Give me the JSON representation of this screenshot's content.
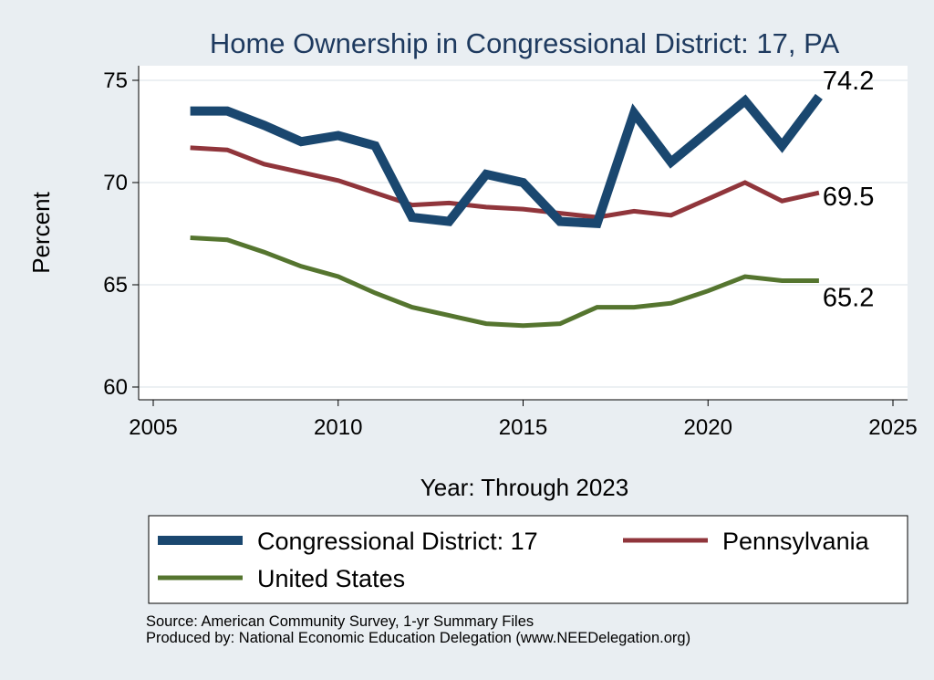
{
  "chart_data": {
    "type": "line",
    "title": "Home Ownership in Congressional District:  17, PA",
    "xlabel": "Year: Through 2023",
    "ylabel": "Percent",
    "xlim": [
      2005,
      2025
    ],
    "ylim": [
      60,
      75
    ],
    "x_ticks": [
      2005,
      2010,
      2015,
      2020,
      2025
    ],
    "y_ticks": [
      60,
      65,
      70,
      75
    ],
    "grid": true,
    "legend_position": "bottom",
    "x": [
      2006,
      2007,
      2008,
      2009,
      2010,
      2011,
      2012,
      2013,
      2014,
      2015,
      2016,
      2017,
      2018,
      2019,
      2020,
      2021,
      2022,
      2023
    ],
    "series": [
      {
        "name": "Congressional District:  17",
        "color": "#1a476f",
        "values": [
          73.5,
          73.5,
          72.8,
          72.0,
          72.3,
          71.8,
          68.3,
          68.1,
          70.4,
          70.0,
          68.1,
          68.0,
          73.4,
          71.0,
          72.5,
          74.0,
          71.8,
          74.2
        ],
        "end_label": "74.2"
      },
      {
        "name": "Pennsylvania",
        "color": "#90353b",
        "values": [
          71.7,
          71.6,
          70.9,
          70.5,
          70.1,
          69.5,
          68.9,
          69.0,
          68.8,
          68.7,
          68.5,
          68.3,
          68.6,
          68.4,
          69.2,
          70.0,
          69.1,
          69.5
        ],
        "end_label": "69.5"
      },
      {
        "name": "United States",
        "color": "#55752f",
        "values": [
          67.3,
          67.2,
          66.6,
          65.9,
          65.4,
          64.6,
          63.9,
          63.5,
          63.1,
          63.0,
          63.1,
          63.9,
          63.9,
          64.1,
          64.7,
          65.4,
          65.2,
          65.2
        ],
        "end_label": "65.2"
      }
    ]
  },
  "source": {
    "line1": "Source: American Community Survey, 1-yr Summary Files",
    "line2": "Produced by: National Economic Education Delegation (www.NEEDelegation.org)"
  }
}
